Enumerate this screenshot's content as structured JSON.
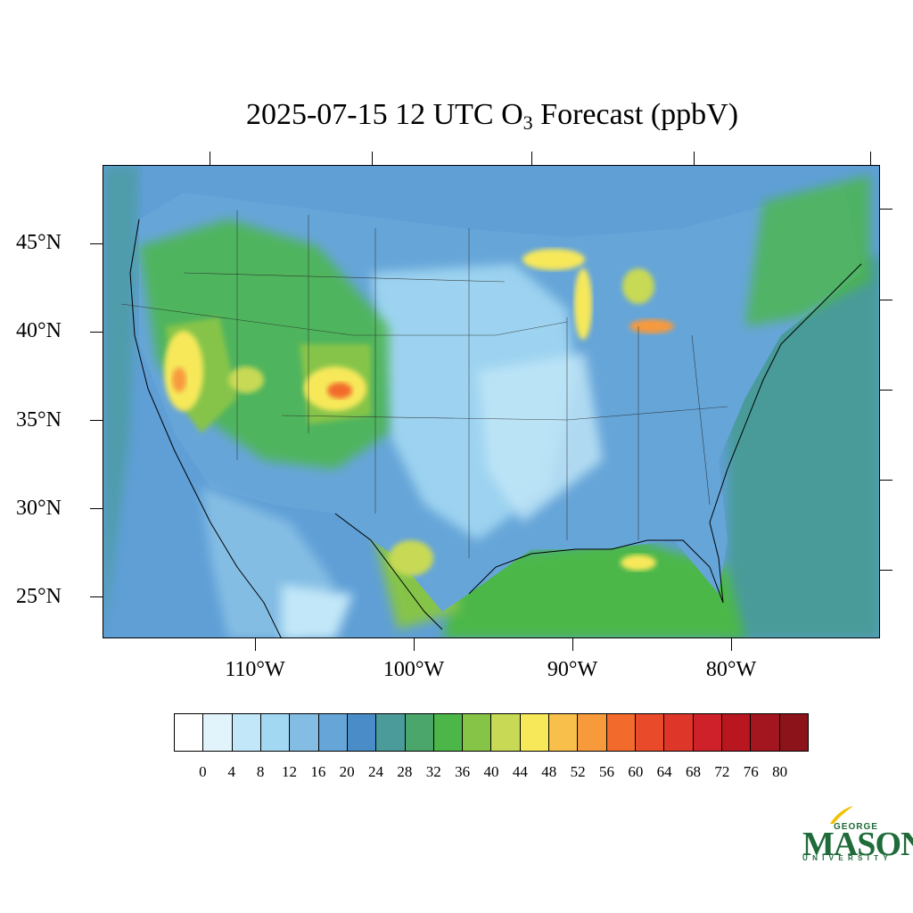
{
  "title": {
    "main": "2025-07-15 12 UTC O",
    "sub": "3",
    "tail": " Forecast (ppbV)"
  },
  "map": {
    "latitude_labels": [
      "45°N",
      "40°N",
      "35°N",
      "30°N",
      "25°N"
    ],
    "longitude_labels": [
      "110°W",
      "100°W",
      "90°W",
      "80°W"
    ]
  },
  "colorbar": {
    "tick_labels": [
      "0",
      "4",
      "8",
      "12",
      "16",
      "20",
      "24",
      "28",
      "32",
      "36",
      "40",
      "44",
      "48",
      "52",
      "56",
      "60",
      "64",
      "68",
      "72",
      "76",
      "80"
    ],
    "colors": [
      "#ffffff",
      "#e1f3fb",
      "#c2e7f8",
      "#a3d8f3",
      "#84bde4",
      "#66a5d8",
      "#4a8cc7",
      "#4a9b9a",
      "#4aa66a",
      "#4cb748",
      "#86c448",
      "#c7d955",
      "#f7e85a",
      "#f8c04a",
      "#f79a3c",
      "#f26a2c",
      "#e84a2a",
      "#de3629",
      "#cf2129",
      "#b8171f",
      "#a31620",
      "#8c1319"
    ]
  },
  "logo": {
    "line1": "GEORGE",
    "line2": "MASON",
    "line3": "UNIVERSITY"
  }
}
